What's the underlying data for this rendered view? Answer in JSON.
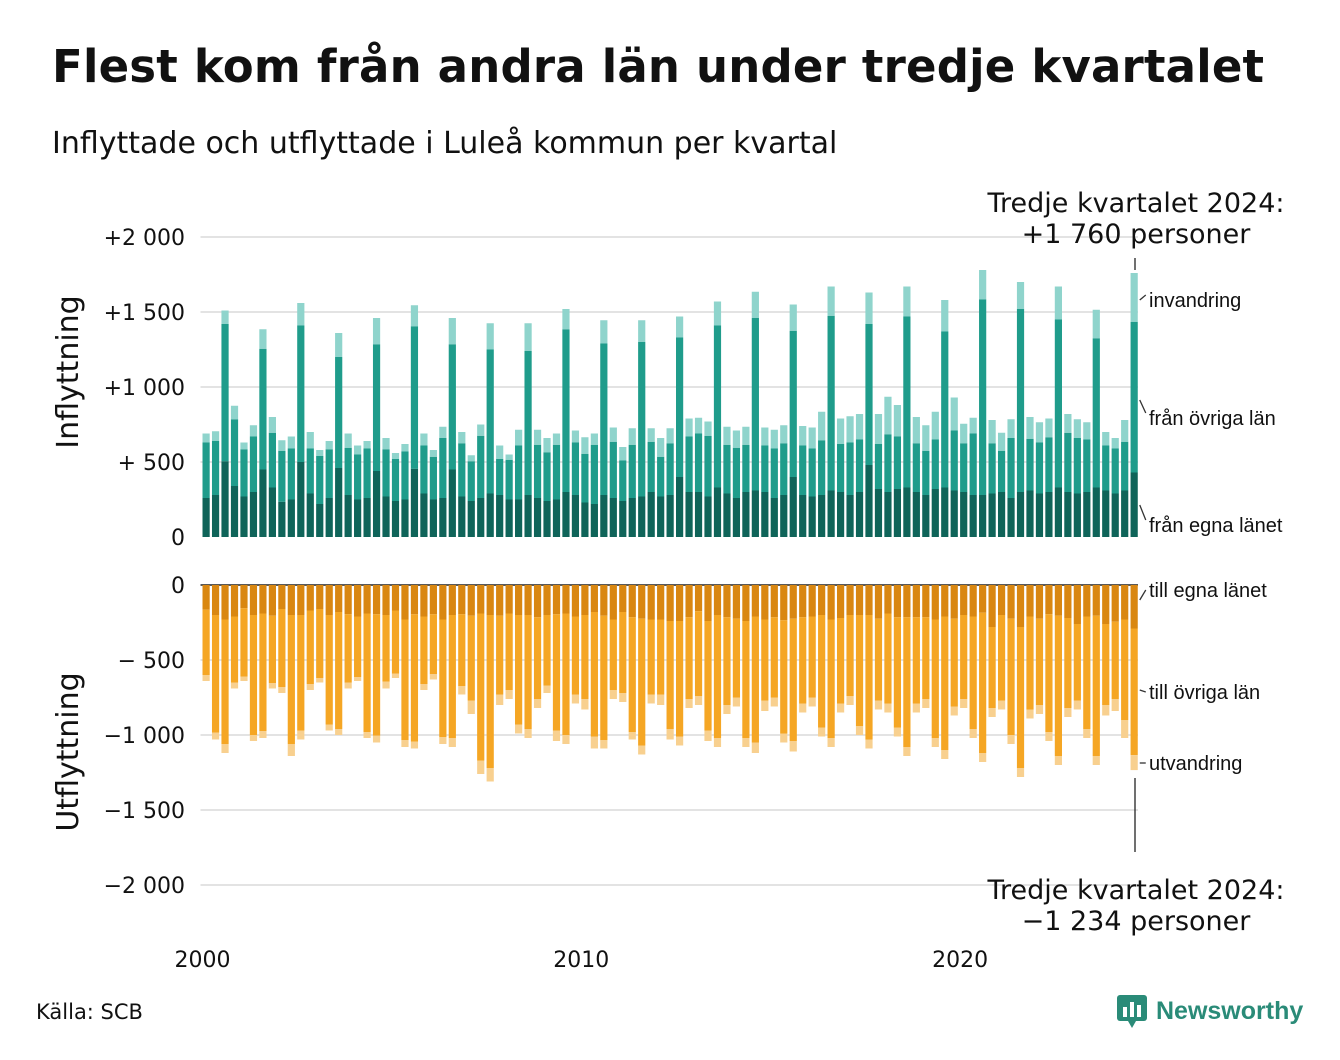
{
  "title": "Flest kom från andra län under tredje kvartalet",
  "subtitle": "Inflyttade och utflyttade i Luleå kommun per kvartal",
  "source": "Källa: SCB",
  "brand": "Newsworthy",
  "colors": {
    "in_own": "#0f6459",
    "in_other": "#1f9c8b",
    "in_immig": "#8fd4cc",
    "out_own": "#d98711",
    "out_other": "#f5a624",
    "out_emig": "#f8d08f",
    "brand": "#2a8b78"
  },
  "annotations": {
    "in_line1": "Tredje kvartalet 2024:",
    "in_line2": "+1 760 personer",
    "out_line1": "Tredje kvartalet 2024:",
    "out_line2": "−1 234 personer"
  },
  "chart_data": {
    "type": "bar",
    "stacked": true,
    "x_unit": "quarter",
    "x_start": "2000-Q1",
    "x_end": "2024-Q3",
    "x_ticks": [
      "2000",
      "2010",
      "2020"
    ],
    "grid": true,
    "panels": [
      {
        "name": "Inflyttning",
        "ylabel": "Inflyttning",
        "ylim": [
          0,
          2000
        ],
        "yticks": [
          {
            "value": 0,
            "label": "0"
          },
          {
            "value": 500,
            "label": "+  500"
          },
          {
            "value": 1000,
            "label": "+1 000"
          },
          {
            "value": 1500,
            "label": "+1 500"
          },
          {
            "value": 2000,
            "label": "+2 000"
          }
        ],
        "series_order": [
          "från egna länet",
          "från övriga län",
          "invandring"
        ],
        "series_labels": [
          "invandring",
          "från övriga län",
          "från egna länet"
        ]
      },
      {
        "name": "Utflyttning",
        "ylabel": "Utflyttning",
        "ylim": [
          -2000,
          0
        ],
        "yticks": [
          {
            "value": 0,
            "label": "0"
          },
          {
            "value": -500,
            "label": "−  500"
          },
          {
            "value": -1000,
            "label": "−1 000"
          },
          {
            "value": -1500,
            "label": "−1 500"
          },
          {
            "value": -2000,
            "label": "−2 000"
          }
        ],
        "series_order": [
          "till egna länet",
          "till övriga län",
          "utvandring"
        ],
        "series_labels": [
          "till egna länet",
          "till övriga län",
          "utvandring"
        ]
      }
    ],
    "inflow_totals": [
      690,
      705,
      1510,
      875,
      630,
      745,
      1385,
      800,
      645,
      670,
      1560,
      700,
      580,
      640,
      1360,
      690,
      610,
      640,
      1460,
      660,
      560,
      620,
      1545,
      690,
      580,
      735,
      1460,
      700,
      545,
      750,
      1425,
      610,
      550,
      715,
      1425,
      715,
      660,
      690,
      1520,
      710,
      665,
      690,
      1445,
      730,
      600,
      725,
      1445,
      725,
      660,
      725,
      1470,
      790,
      795,
      770,
      1570,
      735,
      710,
      735,
      1635,
      730,
      715,
      745,
      1550,
      740,
      730,
      835,
      1670,
      790,
      805,
      820,
      1630,
      820,
      935,
      880,
      1670,
      800,
      745,
      835,
      1580,
      930,
      755,
      795,
      1780,
      780,
      695,
      785,
      1700,
      800,
      765,
      790,
      1670,
      820,
      785,
      765,
      1515,
      700,
      660,
      780,
      1760
    ],
    "inflow_immig": [
      60,
      65,
      90,
      90,
      45,
      75,
      130,
      105,
      70,
      80,
      150,
      110,
      40,
      55,
      160,
      95,
      60,
      50,
      175,
      75,
      40,
      50,
      140,
      80,
      45,
      75,
      175,
      75,
      40,
      75,
      175,
      90,
      35,
      105,
      185,
      100,
      95,
      75,
      135,
      80,
      110,
      75,
      155,
      95,
      90,
      110,
      145,
      90,
      125,
      100,
      140,
      120,
      105,
      95,
      160,
      120,
      115,
      120,
      175,
      120,
      125,
      120,
      175,
      130,
      140,
      190,
      195,
      170,
      175,
      170,
      210,
      200,
      250,
      210,
      200,
      175,
      170,
      185,
      210,
      220,
      130,
      105,
      195,
      155,
      120,
      125,
      180,
      145,
      135,
      125,
      220,
      125,
      125,
      115,
      190,
      90,
      70,
      145,
      325
    ],
    "inflow_own": [
      260,
      280,
      505,
      340,
      270,
      300,
      450,
      330,
      235,
      250,
      500,
      290,
      220,
      260,
      460,
      280,
      250,
      260,
      440,
      270,
      240,
      250,
      455,
      290,
      250,
      260,
      450,
      270,
      240,
      260,
      290,
      280,
      250,
      250,
      280,
      260,
      240,
      250,
      300,
      280,
      230,
      220,
      280,
      260,
      240,
      260,
      270,
      300,
      270,
      280,
      400,
      300,
      300,
      270,
      330,
      290,
      260,
      300,
      310,
      300,
      260,
      280,
      400,
      280,
      270,
      280,
      310,
      300,
      280,
      300,
      480,
      320,
      300,
      320,
      330,
      300,
      280,
      320,
      330,
      310,
      300,
      280,
      280,
      290,
      300,
      260,
      300,
      310,
      290,
      300,
      330,
      300,
      290,
      300,
      330,
      310,
      290,
      310,
      430
    ],
    "outflow_totals": [
      640,
      1030,
      1120,
      690,
      640,
      1040,
      1020,
      690,
      720,
      1140,
      1030,
      700,
      650,
      970,
      1000,
      690,
      640,
      1020,
      1050,
      690,
      620,
      1080,
      1090,
      700,
      630,
      1060,
      1080,
      730,
      860,
      1260,
      1310,
      800,
      760,
      990,
      1020,
      820,
      720,
      1040,
      1060,
      790,
      830,
      1090,
      1090,
      760,
      780,
      1030,
      1130,
      790,
      800,
      1030,
      1070,
      820,
      800,
      1040,
      1080,
      860,
      810,
      1080,
      1120,
      840,
      810,
      1050,
      1110,
      850,
      810,
      1010,
      1080,
      850,
      800,
      1000,
      1090,
      830,
      850,
      1010,
      1140,
      850,
      820,
      1080,
      1160,
      870,
      820,
      1020,
      1180,
      880,
      830,
      1060,
      1280,
      890,
      860,
      1040,
      1200,
      880,
      830,
      1020,
      1200,
      870,
      840,
      1020,
      1234
    ],
    "outflow_emig": [
      40,
      45,
      60,
      40,
      30,
      40,
      45,
      35,
      40,
      80,
      60,
      40,
      30,
      40,
      40,
      40,
      25,
      40,
      45,
      45,
      30,
      45,
      45,
      40,
      35,
      45,
      60,
      55,
      90,
      90,
      90,
      70,
      60,
      60,
      60,
      60,
      50,
      70,
      60,
      60,
      70,
      80,
      55,
      60,
      60,
      50,
      60,
      60,
      70,
      70,
      60,
      60,
      60,
      70,
      60,
      60,
      60,
      60,
      70,
      70,
      60,
      60,
      70,
      60,
      60,
      60,
      60,
      60,
      60,
      60,
      60,
      60,
      60,
      60,
      60,
      60,
      60,
      60,
      60,
      60,
      60,
      60,
      60,
      60,
      60,
      60,
      60,
      60,
      60,
      60,
      60,
      60,
      60,
      60,
      60,
      70,
      80,
      120,
      100
    ],
    "outflow_own": [
      165,
      200,
      230,
      210,
      155,
      200,
      190,
      205,
      160,
      200,
      200,
      170,
      160,
      200,
      180,
      195,
      210,
      190,
      195,
      200,
      170,
      230,
      195,
      210,
      195,
      230,
      200,
      195,
      205,
      190,
      200,
      205,
      190,
      200,
      200,
      215,
      200,
      195,
      190,
      210,
      200,
      180,
      205,
      230,
      180,
      215,
      225,
      230,
      230,
      240,
      240,
      215,
      175,
      240,
      200,
      215,
      225,
      240,
      210,
      230,
      215,
      235,
      225,
      215,
      210,
      200,
      230,
      220,
      200,
      200,
      200,
      225,
      190,
      215,
      215,
      215,
      215,
      230,
      210,
      225,
      200,
      210,
      185,
      280,
      200,
      225,
      280,
      210,
      225,
      195,
      205,
      220,
      260,
      210,
      205,
      260,
      245,
      230,
      290
    ]
  }
}
